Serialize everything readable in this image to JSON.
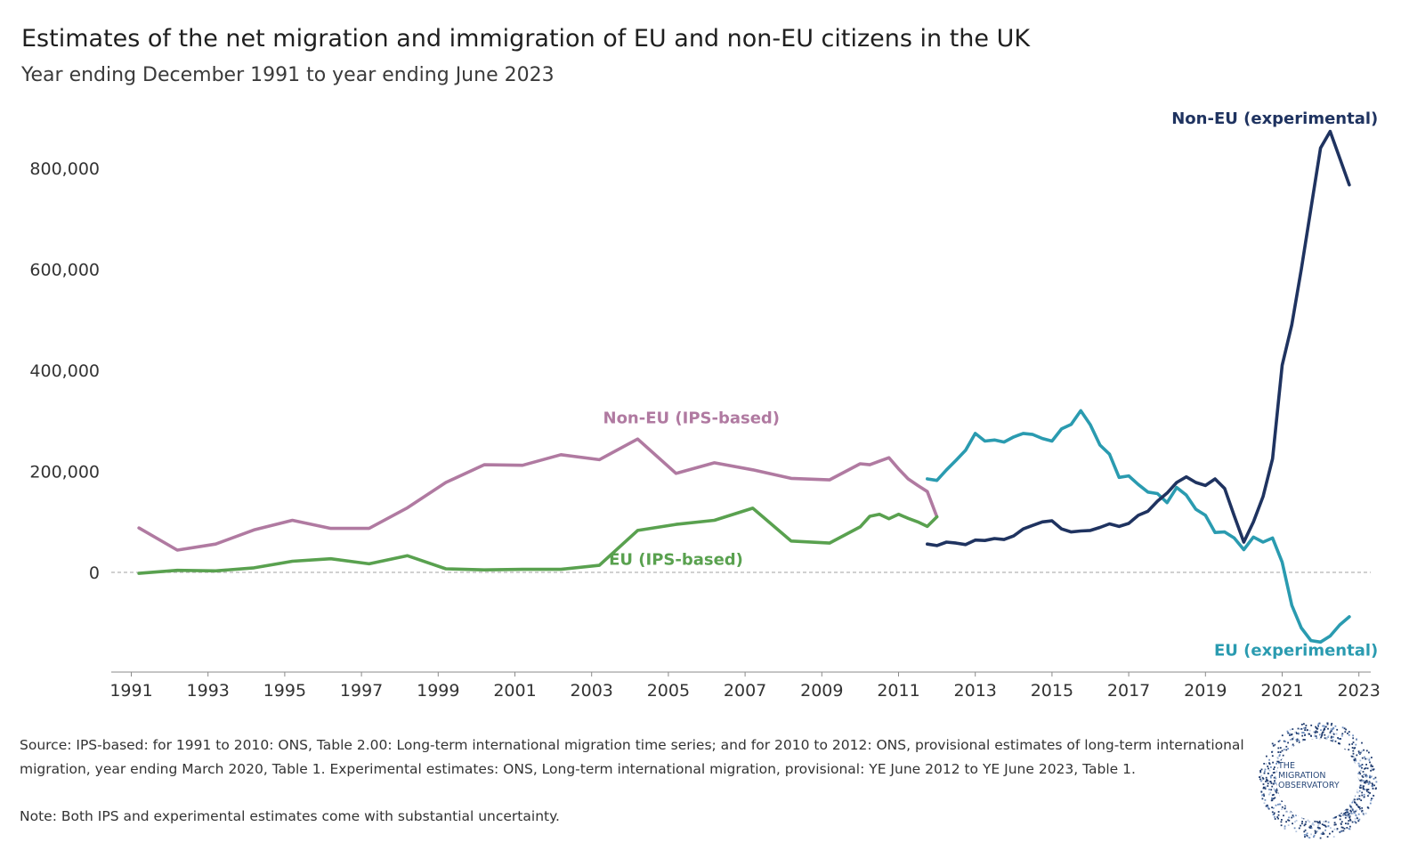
{
  "title": "Estimates of the net migration and immigration of EU and non-EU citizens in the UK",
  "subtitle": "Year ending December 1991 to year ending June 2023",
  "footer": {
    "source": "Source: IPS-based: for 1991 to 2010: ONS, Table 2.00: Long-term international migration time series; and for 2010 to 2012: ONS, provisional estimates of long-term international migration, year ending March 2020, Table 1. Experimental estimates: ONS, Long-term international migration, provisional: YE June 2012 to YE June 2023, Table 1.",
    "note": "Note: Both IPS and experimental estimates come with substantial uncertainty."
  },
  "logo": {
    "line1": "THE",
    "line2": "MIGRATION",
    "line3": "OBSERVATORY"
  },
  "colors": {
    "non_eu_ips": "#b07aa1",
    "eu_ips": "#59a14f",
    "eu_experimental": "#2a9bb0",
    "non_eu_experimental": "#1f3360",
    "zero_line": "#b5b5b5"
  },
  "chart_data": {
    "type": "line",
    "xlim": [
      1991,
      2023.5
    ],
    "ylim": [
      -200000,
      900000
    ],
    "yticks": [
      0,
      200000,
      400000,
      600000,
      800000
    ],
    "ytick_labels": [
      "0",
      "200,000",
      "400,000",
      "600,000",
      "800,000"
    ],
    "xticks": [
      1991,
      1993,
      1995,
      1997,
      1999,
      2001,
      2003,
      2005,
      2007,
      2009,
      2011,
      2013,
      2015,
      2017,
      2019,
      2021,
      2023
    ],
    "xtick_labels": [
      "1991",
      "1993",
      "1995",
      "1997",
      "1999",
      "2001",
      "2003",
      "2005",
      "2007",
      "2009",
      "2011",
      "2013",
      "2015",
      "2017",
      "2019",
      "2021",
      "2023"
    ],
    "zero_line": "dashed",
    "series": [
      {
        "name": "Non-EU (IPS-based)",
        "color_key": "non_eu_ips",
        "points": [
          [
            1991.2,
            88000
          ],
          [
            1992.2,
            44000
          ],
          [
            1993.2,
            56000
          ],
          [
            1994.2,
            84000
          ],
          [
            1995.2,
            103000
          ],
          [
            1996.2,
            87000
          ],
          [
            1997.2,
            87000
          ],
          [
            1998.2,
            128000
          ],
          [
            1999.2,
            178000
          ],
          [
            2000.2,
            213000
          ],
          [
            2001.2,
            212000
          ],
          [
            2002.2,
            233000
          ],
          [
            2003.2,
            223000
          ],
          [
            2004.2,
            264000
          ],
          [
            2005.2,
            196000
          ],
          [
            2006.2,
            217000
          ],
          [
            2007.2,
            203000
          ],
          [
            2008.2,
            186000
          ],
          [
            2009.2,
            183000
          ],
          [
            2010.0,
            215000
          ],
          [
            2010.25,
            213000
          ],
          [
            2010.5,
            220000
          ],
          [
            2010.75,
            227000
          ],
          [
            2011.0,
            205000
          ],
          [
            2011.25,
            185000
          ],
          [
            2011.5,
            172000
          ],
          [
            2011.75,
            160000
          ],
          [
            2012.0,
            110000
          ]
        ]
      },
      {
        "name": "EU (IPS-based)",
        "color_key": "eu_ips",
        "points": [
          [
            1991.2,
            -2000
          ],
          [
            1992.2,
            4000
          ],
          [
            1993.2,
            3000
          ],
          [
            1994.2,
            9000
          ],
          [
            1995.2,
            22000
          ],
          [
            1996.2,
            27000
          ],
          [
            1997.2,
            17000
          ],
          [
            1998.2,
            33000
          ],
          [
            1999.2,
            7000
          ],
          [
            2000.2,
            5000
          ],
          [
            2001.2,
            6000
          ],
          [
            2002.2,
            6000
          ],
          [
            2003.2,
            14000
          ],
          [
            2004.2,
            83000
          ],
          [
            2005.2,
            95000
          ],
          [
            2006.2,
            103000
          ],
          [
            2007.2,
            127000
          ],
          [
            2008.2,
            62000
          ],
          [
            2009.2,
            58000
          ],
          [
            2010.0,
            90000
          ],
          [
            2010.25,
            111000
          ],
          [
            2010.5,
            115000
          ],
          [
            2010.75,
            106000
          ],
          [
            2011.0,
            115000
          ],
          [
            2011.25,
            107000
          ],
          [
            2011.5,
            100000
          ],
          [
            2011.75,
            91000
          ],
          [
            2012.0,
            110000
          ]
        ]
      },
      {
        "name": "EU (experimental)",
        "color_key": "eu_experimental",
        "points": [
          [
            2011.75,
            185000
          ],
          [
            2012.0,
            182000
          ],
          [
            2012.25,
            203000
          ],
          [
            2012.5,
            222000
          ],
          [
            2012.75,
            242000
          ],
          [
            2013.0,
            275000
          ],
          [
            2013.25,
            260000
          ],
          [
            2013.5,
            262000
          ],
          [
            2013.75,
            258000
          ],
          [
            2014.0,
            268000
          ],
          [
            2014.25,
            275000
          ],
          [
            2014.5,
            273000
          ],
          [
            2014.75,
            265000
          ],
          [
            2015.0,
            260000
          ],
          [
            2015.25,
            284000
          ],
          [
            2015.5,
            293000
          ],
          [
            2015.75,
            320000
          ],
          [
            2016.0,
            292000
          ],
          [
            2016.25,
            252000
          ],
          [
            2016.5,
            234000
          ],
          [
            2016.75,
            188000
          ],
          [
            2017.0,
            191000
          ],
          [
            2017.25,
            174000
          ],
          [
            2017.5,
            159000
          ],
          [
            2017.75,
            156000
          ],
          [
            2018.0,
            138000
          ],
          [
            2018.25,
            168000
          ],
          [
            2018.5,
            153000
          ],
          [
            2018.75,
            125000
          ],
          [
            2019.0,
            113000
          ],
          [
            2019.25,
            79000
          ],
          [
            2019.5,
            80000
          ],
          [
            2019.75,
            68000
          ],
          [
            2020.0,
            45000
          ],
          [
            2020.25,
            70000
          ],
          [
            2020.5,
            60000
          ],
          [
            2020.75,
            68000
          ],
          [
            2021.0,
            20000
          ],
          [
            2021.25,
            -65000
          ],
          [
            2021.5,
            -110000
          ],
          [
            2021.75,
            -135000
          ],
          [
            2022.0,
            -138000
          ],
          [
            2022.25,
            -126000
          ],
          [
            2022.5,
            -104000
          ],
          [
            2022.75,
            -88000
          ]
        ]
      },
      {
        "name": "Non-EU (experimental)",
        "color_key": "non_eu_experimental",
        "points": [
          [
            2011.75,
            56000
          ],
          [
            2012.0,
            53000
          ],
          [
            2012.25,
            60000
          ],
          [
            2012.5,
            58000
          ],
          [
            2012.75,
            55000
          ],
          [
            2013.0,
            64000
          ],
          [
            2013.25,
            63000
          ],
          [
            2013.5,
            67000
          ],
          [
            2013.75,
            65000
          ],
          [
            2014.0,
            72000
          ],
          [
            2014.25,
            86000
          ],
          [
            2014.5,
            93000
          ],
          [
            2014.75,
            100000
          ],
          [
            2015.0,
            102000
          ],
          [
            2015.25,
            86000
          ],
          [
            2015.5,
            80000
          ],
          [
            2015.75,
            82000
          ],
          [
            2016.0,
            83000
          ],
          [
            2016.25,
            89000
          ],
          [
            2016.5,
            96000
          ],
          [
            2016.75,
            91000
          ],
          [
            2017.0,
            97000
          ],
          [
            2017.25,
            113000
          ],
          [
            2017.5,
            121000
          ],
          [
            2017.75,
            141000
          ],
          [
            2018.0,
            157000
          ],
          [
            2018.25,
            178000
          ],
          [
            2018.5,
            189000
          ],
          [
            2018.75,
            178000
          ],
          [
            2019.0,
            172000
          ],
          [
            2019.25,
            185000
          ],
          [
            2019.5,
            166000
          ],
          [
            2019.75,
            112000
          ],
          [
            2020.0,
            60000
          ],
          [
            2020.25,
            100000
          ],
          [
            2020.5,
            150000
          ],
          [
            2020.75,
            225000
          ],
          [
            2021.0,
            410000
          ],
          [
            2021.25,
            490000
          ],
          [
            2021.5,
            600000
          ],
          [
            2021.75,
            720000
          ],
          [
            2022.0,
            840000
          ],
          [
            2022.25,
            873000
          ],
          [
            2022.5,
            820000
          ],
          [
            2022.75,
            767000
          ]
        ]
      }
    ],
    "labels": [
      {
        "text": "Non-EU (IPS-based)",
        "color_key": "non_eu_ips",
        "anchor_x": 2005.6,
        "anchor_y": 295000,
        "align": "middle"
      },
      {
        "text": "EU (IPS-based)",
        "color_key": "eu_ips",
        "anchor_x": 2005.2,
        "anchor_y": 15000,
        "align": "middle"
      },
      {
        "text": "Non-EU (experimental)",
        "color_key": "non_eu_experimental",
        "anchor_x": 2023.5,
        "anchor_y": 888000,
        "align": "end"
      },
      {
        "text": "EU (experimental)",
        "color_key": "eu_experimental",
        "anchor_x": 2023.5,
        "anchor_y": -165000,
        "align": "end"
      }
    ]
  }
}
